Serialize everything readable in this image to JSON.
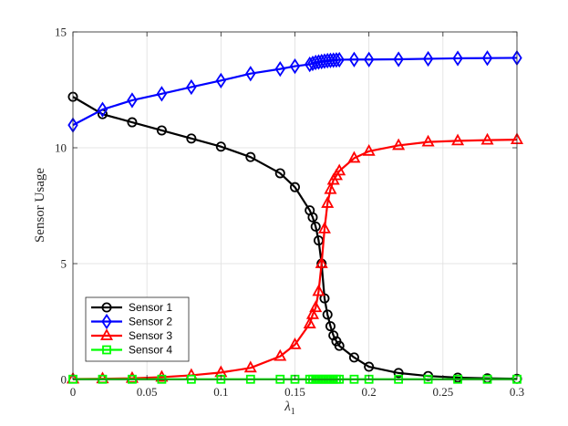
{
  "chart_data": {
    "type": "line",
    "title": "",
    "xlabel": "λ",
    "xlabel_subscript": "1",
    "ylabel": "Sensor Usage",
    "xlim": [
      0,
      0.3
    ],
    "ylim": [
      0,
      15
    ],
    "xticks": [
      0,
      0.05,
      0.1,
      0.15,
      0.2,
      0.25,
      0.3
    ],
    "xtick_labels": [
      "0",
      "0.05",
      "0.1",
      "0.15",
      "0.2",
      "0.25",
      "0.3"
    ],
    "yticks": [
      0,
      5,
      10,
      15
    ],
    "ytick_labels": [
      "0",
      "5",
      "10",
      "15"
    ],
    "grid": true,
    "legend_position": "bottom-left",
    "x": [
      0,
      0.02,
      0.04,
      0.06,
      0.08,
      0.1,
      0.12,
      0.14,
      0.15,
      0.16,
      0.162,
      0.164,
      0.166,
      0.168,
      0.17,
      0.172,
      0.174,
      0.176,
      0.178,
      0.18,
      0.19,
      0.2,
      0.22,
      0.24,
      0.26,
      0.28,
      0.3
    ],
    "series": [
      {
        "name": "Sensor 1",
        "color": "#000000",
        "marker": "circle",
        "values": [
          12.2,
          11.45,
          11.1,
          10.75,
          10.4,
          10.05,
          9.6,
          8.9,
          8.3,
          7.3,
          7.0,
          6.6,
          6.0,
          5.0,
          3.5,
          2.8,
          2.3,
          1.9,
          1.65,
          1.45,
          0.95,
          0.55,
          0.28,
          0.15,
          0.08,
          0.05,
          0.03
        ]
      },
      {
        "name": "Sensor 2",
        "color": "#0000ff",
        "marker": "diamond",
        "values": [
          10.98,
          11.65,
          12.05,
          12.33,
          12.62,
          12.9,
          13.2,
          13.4,
          13.52,
          13.6,
          13.64,
          13.68,
          13.7,
          13.72,
          13.74,
          13.76,
          13.77,
          13.78,
          13.79,
          13.8,
          13.81,
          13.81,
          13.82,
          13.84,
          13.86,
          13.87,
          13.88
        ]
      },
      {
        "name": "Sensor 3",
        "color": "#ff0000",
        "marker": "triangle",
        "values": [
          0.02,
          0.03,
          0.05,
          0.1,
          0.18,
          0.3,
          0.5,
          1.0,
          1.5,
          2.4,
          2.8,
          3.1,
          3.8,
          5.0,
          6.5,
          7.6,
          8.2,
          8.6,
          8.8,
          9.0,
          9.55,
          9.85,
          10.1,
          10.25,
          10.3,
          10.33,
          10.35
        ]
      },
      {
        "name": "Sensor 4",
        "color": "#00ff00",
        "marker": "square",
        "values": [
          0.01,
          0.01,
          0.01,
          0.01,
          0.01,
          0.01,
          0.01,
          0.01,
          0.01,
          0.01,
          0.01,
          0.01,
          0.01,
          0.01,
          0.01,
          0.01,
          0.01,
          0.01,
          0.01,
          0.01,
          0.01,
          0.01,
          0.01,
          0.01,
          0.01,
          0.01,
          0.01
        ]
      }
    ]
  }
}
